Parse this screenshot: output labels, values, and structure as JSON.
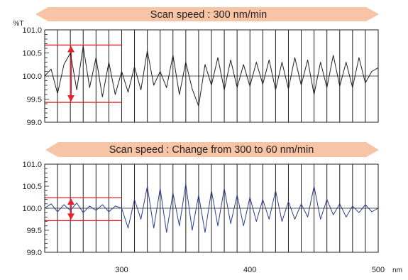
{
  "chart_data": [
    {
      "type": "line",
      "title": "Scan speed : 300 nm/min",
      "ylabel": "%T",
      "xlabel": "nm",
      "xlim": [
        240,
        500
      ],
      "ylim": [
        99.0,
        101.0
      ],
      "yticks": [
        "101.0",
        "100.5",
        "100.0",
        "99.5",
        "99.0"
      ],
      "xticks": [],
      "grid": "vertical lines every 10 nm",
      "band": {
        "x": [
          240,
          300
        ],
        "upper": 100.67,
        "lower": 99.43
      },
      "series": [
        {
          "line_color": "#231f20",
          "x": [
            240,
            245,
            250,
            255,
            260,
            265,
            270,
            275,
            280,
            285,
            290,
            295,
            300,
            305,
            310,
            315,
            320,
            325,
            330,
            335,
            340,
            345,
            350,
            355,
            360,
            365,
            370,
            375,
            380,
            385,
            390,
            395,
            400,
            405,
            410,
            415,
            420,
            425,
            430,
            435,
            440,
            445,
            450,
            455,
            460,
            465,
            470,
            475,
            480,
            485,
            490,
            495,
            500
          ],
          "values": [
            100.0,
            100.15,
            99.62,
            100.25,
            100.5,
            99.7,
            100.65,
            99.75,
            100.4,
            99.55,
            100.3,
            99.6,
            100.1,
            99.65,
            100.2,
            99.7,
            100.55,
            99.8,
            100.1,
            99.75,
            100.45,
            99.6,
            100.3,
            99.72,
            99.35,
            100.25,
            99.8,
            100.4,
            99.7,
            100.35,
            99.75,
            100.25,
            99.78,
            100.3,
            99.82,
            100.35,
            99.7,
            100.3,
            99.72,
            100.4,
            99.8,
            100.35,
            99.6,
            100.3,
            99.75,
            100.45,
            99.78,
            100.3,
            99.75,
            100.4,
            99.85,
            100.1,
            100.18
          ]
        }
      ]
    },
    {
      "type": "line",
      "title": "Scan speed : Change from 300  to 60 nm/min",
      "ylabel": "",
      "xlabel": "nm",
      "xlim": [
        240,
        500
      ],
      "ylim": [
        99.0,
        101.0
      ],
      "yticks": [
        "101.0",
        "100.5",
        "100.0",
        "99.5",
        "99.0"
      ],
      "xticks": [
        "300",
        "400",
        "500"
      ],
      "xtick_values": [
        300,
        400,
        500
      ],
      "grid": "vertical lines every 10 nm",
      "band": {
        "x": [
          240,
          300
        ],
        "upper": 100.24,
        "lower": 99.72
      },
      "series": [
        {
          "line_color": "#2a3d8f",
          "x": [
            240,
            245,
            250,
            255,
            260,
            265,
            270,
            275,
            280,
            285,
            290,
            295,
            300,
            305,
            310,
            315,
            320,
            325,
            330,
            335,
            340,
            345,
            350,
            355,
            360,
            365,
            370,
            375,
            380,
            385,
            390,
            395,
            400,
            405,
            410,
            415,
            420,
            425,
            430,
            435,
            440,
            445,
            450,
            455,
            460,
            465,
            470,
            475,
            480,
            485,
            490,
            495,
            500
          ],
          "values": [
            100.0,
            100.1,
            99.92,
            100.08,
            99.95,
            100.12,
            99.9,
            100.05,
            99.95,
            100.08,
            99.92,
            100.05,
            100.0,
            99.55,
            100.2,
            99.75,
            100.5,
            99.55,
            100.45,
            99.45,
            100.35,
            99.6,
            100.55,
            99.5,
            100.3,
            99.45,
            100.4,
            99.6,
            100.45,
            99.65,
            100.3,
            99.6,
            100.25,
            99.7,
            100.2,
            99.75,
            100.4,
            99.7,
            100.15,
            99.75,
            100.1,
            99.8,
            100.5,
            99.75,
            100.2,
            99.85,
            100.1,
            99.8,
            100.05,
            99.9,
            100.08,
            99.92,
            100.0
          ]
        }
      ]
    }
  ],
  "colors": {
    "banner": "#f7c4a5",
    "band_lines": "#e8202a",
    "arrow": "#e8202a",
    "plot_black": "#231f20",
    "plot_blue": "#2a3d8f"
  }
}
